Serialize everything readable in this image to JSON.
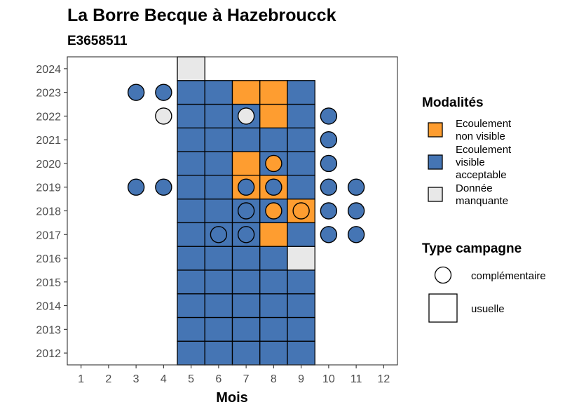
{
  "chart_data": {
    "type": "heatmap",
    "title": "La Borre Becque à Hazebroucck",
    "subtitle": "E3658511",
    "xlabel": "Mois",
    "ylabel": "",
    "x_ticks": [
      1,
      2,
      3,
      4,
      5,
      6,
      7,
      8,
      9,
      10,
      11,
      12
    ],
    "y_ticks": [
      2012,
      2013,
      2014,
      2015,
      2016,
      2017,
      2018,
      2019,
      2020,
      2021,
      2022,
      2023,
      2024
    ],
    "xlim": [
      0.5,
      12.5
    ],
    "ylim": [
      2011.5,
      2024.5
    ],
    "grid": false,
    "legend_position": "right",
    "colors": {
      "ecoulement_non_visible": "#fe9d30",
      "ecoulement_visible_acceptable": "#4575b4",
      "donnee_manquante": "#e8e8e8"
    },
    "legend": {
      "modalites": {
        "title": "Modalités",
        "items": [
          {
            "key": "ecoulement_non_visible",
            "lines": [
              "Ecoulement",
              "non visible"
            ]
          },
          {
            "key": "ecoulement_visible_acceptable",
            "lines": [
              "Ecoulement",
              "visible",
              "acceptable"
            ]
          },
          {
            "key": "donnee_manquante",
            "lines": [
              "Donnée",
              "manquante"
            ]
          }
        ]
      },
      "type_campagne": {
        "title": "Type campagne",
        "items": [
          {
            "shape": "circle",
            "label": "complémentaire"
          },
          {
            "shape": "square",
            "label": "usuelle"
          }
        ]
      }
    },
    "usuelle": [
      {
        "year": 2012,
        "months": [
          5,
          6,
          7,
          8,
          9
        ],
        "values": [
          "v",
          "v",
          "v",
          "v",
          "v"
        ]
      },
      {
        "year": 2013,
        "months": [
          5,
          6,
          7,
          8,
          9
        ],
        "values": [
          "v",
          "v",
          "v",
          "v",
          "v"
        ]
      },
      {
        "year": 2014,
        "months": [
          5,
          6,
          7,
          8,
          9
        ],
        "values": [
          "v",
          "v",
          "v",
          "v",
          "v"
        ]
      },
      {
        "year": 2015,
        "months": [
          5,
          6,
          7,
          8,
          9
        ],
        "values": [
          "v",
          "v",
          "v",
          "v",
          "v"
        ]
      },
      {
        "year": 2016,
        "months": [
          5,
          6,
          7,
          8,
          9
        ],
        "values": [
          "v",
          "v",
          "v",
          "v",
          "m"
        ]
      },
      {
        "year": 2017,
        "months": [
          5,
          6,
          7,
          8,
          9
        ],
        "values": [
          "v",
          "v",
          "v",
          "n",
          "v"
        ]
      },
      {
        "year": 2018,
        "months": [
          5,
          6,
          7,
          8,
          9
        ],
        "values": [
          "v",
          "v",
          "v",
          "v",
          "n"
        ]
      },
      {
        "year": 2019,
        "months": [
          5,
          6,
          7,
          8,
          9
        ],
        "values": [
          "v",
          "v",
          "n",
          "n",
          "v"
        ]
      },
      {
        "year": 2020,
        "months": [
          5,
          6,
          7,
          8,
          9
        ],
        "values": [
          "v",
          "v",
          "n",
          "v",
          "v"
        ]
      },
      {
        "year": 2021,
        "months": [
          5,
          6,
          7,
          8,
          9
        ],
        "values": [
          "v",
          "v",
          "v",
          "v",
          "v"
        ]
      },
      {
        "year": 2022,
        "months": [
          5,
          6,
          7,
          8,
          9
        ],
        "values": [
          "v",
          "v",
          "v",
          "n",
          "v"
        ]
      },
      {
        "year": 2023,
        "months": [
          5,
          6,
          7,
          8,
          9
        ],
        "values": [
          "v",
          "v",
          "n",
          "n",
          "v"
        ]
      },
      {
        "year": 2024,
        "months": [
          5
        ],
        "values": [
          "m"
        ]
      }
    ],
    "complementaire": [
      {
        "year": 2017,
        "months": [
          6,
          7,
          10,
          11
        ],
        "values": [
          "v",
          "v",
          "v",
          "v"
        ]
      },
      {
        "year": 2018,
        "months": [
          7,
          8,
          9,
          10,
          11
        ],
        "values": [
          "v",
          "n",
          "n",
          "v",
          "v"
        ]
      },
      {
        "year": 2019,
        "months": [
          3,
          4,
          7,
          8,
          10,
          11
        ],
        "values": [
          "v",
          "v",
          "v",
          "v",
          "v",
          "v"
        ]
      },
      {
        "year": 2020,
        "months": [
          8,
          10
        ],
        "values": [
          "n",
          "v"
        ]
      },
      {
        "year": 2021,
        "months": [
          10
        ],
        "values": [
          "v"
        ]
      },
      {
        "year": 2022,
        "months": [
          4,
          7,
          10
        ],
        "values": [
          "m",
          "m",
          "v"
        ]
      },
      {
        "year": 2023,
        "months": [
          3,
          4
        ],
        "values": [
          "v",
          "v"
        ]
      }
    ],
    "value_codes": {
      "v": "ecoulement_visible_acceptable",
      "n": "ecoulement_non_visible",
      "m": "donnee_manquante"
    }
  }
}
